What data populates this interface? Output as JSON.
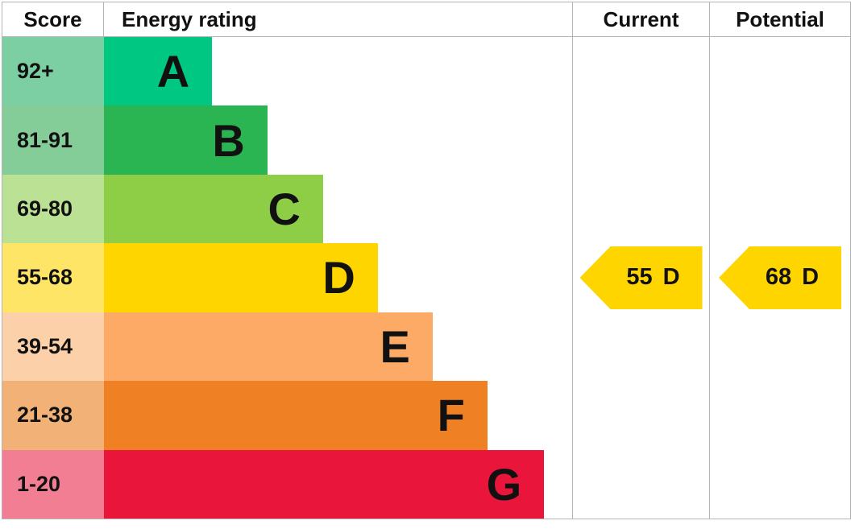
{
  "header": {
    "score": "Score",
    "energy_rating": "Energy rating",
    "current": "Current",
    "potential": "Potential"
  },
  "bands": [
    {
      "letter": "A",
      "score_range": "92+",
      "bar_color": "#00c781",
      "score_color": "#7ccfa2",
      "width_pct": 23.1
    },
    {
      "letter": "B",
      "score_range": "81-91",
      "bar_color": "#2ab552",
      "score_color": "#85cd98",
      "width_pct": 34.9
    },
    {
      "letter": "C",
      "score_range": "69-80",
      "bar_color": "#8dce46",
      "score_color": "#bbe294",
      "width_pct": 46.8
    },
    {
      "letter": "D",
      "score_range": "55-68",
      "bar_color": "#ffd500",
      "score_color": "#ffe566",
      "width_pct": 58.5
    },
    {
      "letter": "E",
      "score_range": "39-54",
      "bar_color": "#fcaa65",
      "score_color": "#fcd0a8",
      "width_pct": 70.2
    },
    {
      "letter": "F",
      "score_range": "21-38",
      "bar_color": "#ef8023",
      "score_color": "#f2b277",
      "width_pct": 81.9
    },
    {
      "letter": "G",
      "score_range": "1-20",
      "bar_color": "#e9153b",
      "score_color": "#f27e93",
      "width_pct": 94.0
    }
  ],
  "ratings": {
    "current": {
      "value": "55",
      "letter": "D",
      "color": "#ffd500",
      "band_index": 3
    },
    "potential": {
      "value": "68",
      "letter": "D",
      "color": "#ffd500",
      "band_index": 3
    }
  },
  "grid_line_color": "#b4b4b4",
  "chart_data": {
    "type": "bar",
    "orientation": "horizontal",
    "title": "",
    "columns": [
      "Score",
      "Energy rating",
      "Current",
      "Potential"
    ],
    "categories": [
      "A",
      "B",
      "C",
      "D",
      "E",
      "F",
      "G"
    ],
    "score_ranges": [
      "92+",
      "81-91",
      "69-80",
      "55-68",
      "39-54",
      "21-38",
      "1-20"
    ],
    "bar_lengths_pct_of_column": [
      23.1,
      34.9,
      46.8,
      58.5,
      70.2,
      81.9,
      94.0
    ],
    "bar_colors": [
      "#00c781",
      "#2ab552",
      "#8dce46",
      "#ffd500",
      "#fcaa65",
      "#ef8023",
      "#e9153b"
    ],
    "current": {
      "score": 55,
      "band": "D"
    },
    "potential": {
      "score": 68,
      "band": "D"
    },
    "legend_position": "none",
    "grid": "table-borders"
  }
}
